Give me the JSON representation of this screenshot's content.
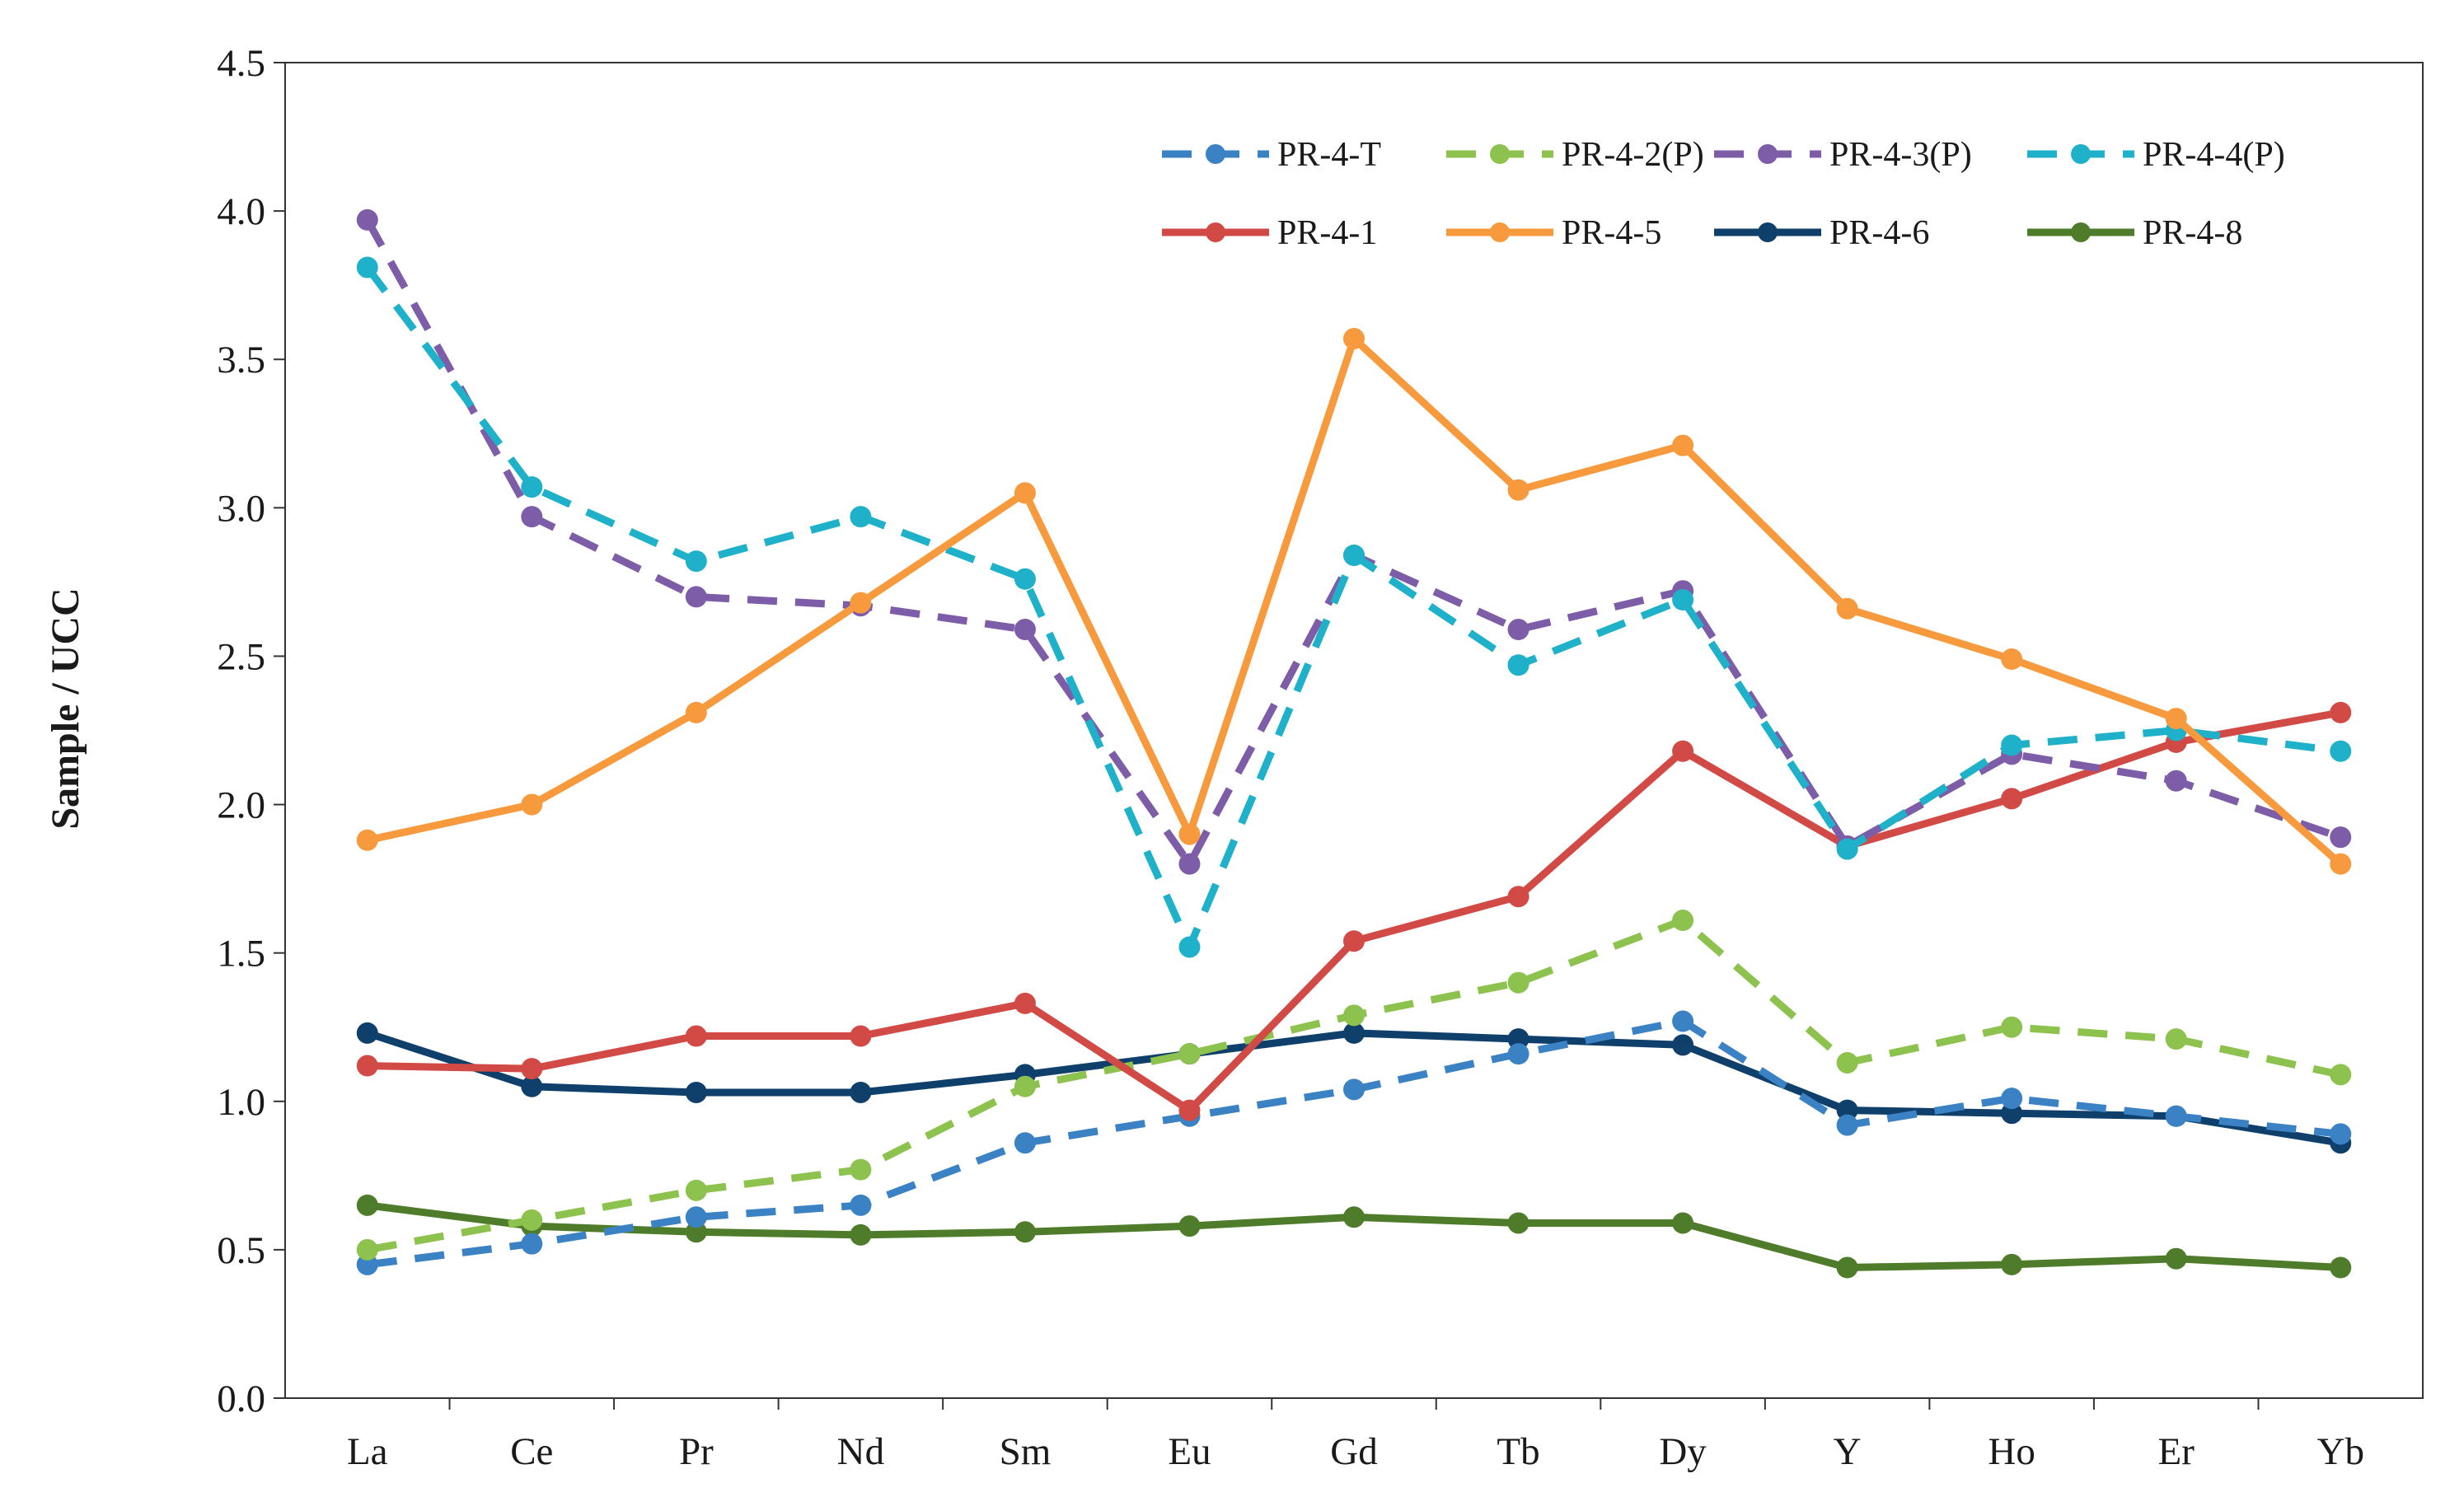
{
  "chart_data": {
    "type": "line",
    "title": "",
    "xlabel": "",
    "ylabel": "Sample / UCC",
    "ylim": [
      0,
      4.5
    ],
    "yticks": [
      "0.0",
      "0.5",
      "1.0",
      "1.5",
      "2.0",
      "2.5",
      "3.0",
      "3.5",
      "4.0",
      "4.5"
    ],
    "categories": [
      "La",
      "Ce",
      "Pr",
      "Nd",
      "Sm",
      "Eu",
      "Gd",
      "Tb",
      "Dy",
      "Y",
      "Ho",
      "Er",
      "Yb"
    ],
    "legend_position": "top-right",
    "series": [
      {
        "name": "PR-4-T",
        "color": "#3b82c4",
        "style": "dashed",
        "values": [
          0.45,
          0.52,
          0.61,
          0.65,
          0.86,
          0.95,
          1.04,
          1.16,
          1.27,
          0.92,
          1.01,
          0.95,
          0.89
        ]
      },
      {
        "name": "PR-4-2(P)",
        "color": "#8dc24f",
        "style": "dashed",
        "values": [
          0.5,
          0.6,
          0.7,
          0.77,
          1.05,
          1.16,
          1.29,
          1.4,
          1.61,
          1.13,
          1.25,
          1.21,
          1.09
        ]
      },
      {
        "name": "PR-4-3(P)",
        "color": "#7d5ca8",
        "style": "dashed",
        "values": [
          3.97,
          2.97,
          2.7,
          2.67,
          2.59,
          1.8,
          2.84,
          2.59,
          2.72,
          1.86,
          2.17,
          2.08,
          1.89
        ]
      },
      {
        "name": "PR-4-4(P)",
        "color": "#1fb1c9",
        "style": "dashed",
        "values": [
          3.81,
          3.07,
          2.82,
          2.97,
          2.76,
          1.52,
          2.84,
          2.47,
          2.69,
          1.85,
          2.2,
          2.25,
          2.18
        ]
      },
      {
        "name": "PR-4-1",
        "color": "#d14a45",
        "style": "solid",
        "values": [
          1.12,
          1.11,
          1.22,
          1.22,
          1.33,
          0.97,
          1.54,
          1.69,
          2.18,
          1.86,
          2.02,
          2.21,
          2.31
        ]
      },
      {
        "name": "PR-4-5",
        "color": "#f7993d",
        "style": "solid",
        "values": [
          1.88,
          2.0,
          2.31,
          2.68,
          3.05,
          1.9,
          3.57,
          3.06,
          3.21,
          2.66,
          2.49,
          2.29,
          1.8
        ]
      },
      {
        "name": "PR-4-6",
        "color": "#0f3f6b",
        "style": "solid",
        "values": [
          1.23,
          1.05,
          1.03,
          1.03,
          1.09,
          1.16,
          1.23,
          1.21,
          1.19,
          0.97,
          0.96,
          0.95,
          0.86
        ]
      },
      {
        "name": "PR-4-8",
        "color": "#4f7c2a",
        "style": "solid",
        "values": [
          0.65,
          0.58,
          0.56,
          0.55,
          0.56,
          0.58,
          0.61,
          0.59,
          0.59,
          0.44,
          0.45,
          0.47,
          0.44
        ]
      }
    ]
  }
}
